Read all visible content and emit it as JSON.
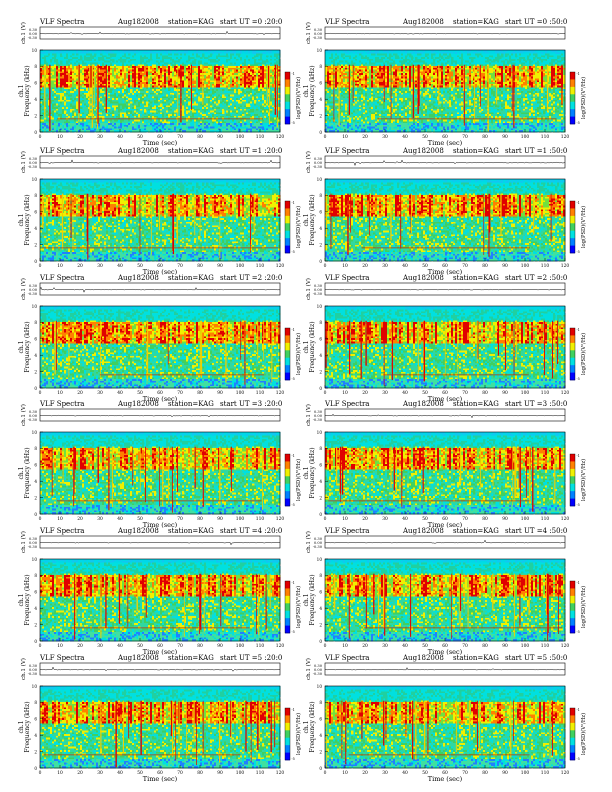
{
  "page": {
    "panels": [
      {
        "title": "VLF Spectra",
        "date": "Aug182008",
        "station": "station=KAG",
        "start": "start  UT  =0 :20:0"
      },
      {
        "title": "VLF Spectra",
        "date": "Aug182008",
        "station": "station=KAG",
        "start": "start  UT  =0 :50:0"
      },
      {
        "title": "VLF Spectra",
        "date": "Aug182008",
        "station": "station=KAG",
        "start": "start  UT  =1 :20:0"
      },
      {
        "title": "VLF Spectra",
        "date": "Aug182008",
        "station": "station=KAG",
        "start": "start  UT  =1 :50:0"
      },
      {
        "title": "VLF Spectra",
        "date": "Aug182008",
        "station": "station=KAG",
        "start": "start  UT  =2 :20:0"
      },
      {
        "title": "VLF Spectra",
        "date": "Aug182008",
        "station": "station=KAG",
        "start": "start  UT  =2 :50:0"
      },
      {
        "title": "VLF Spectra",
        "date": "Aug182008",
        "station": "station=KAG",
        "start": "start  UT  =3 :20:0"
      },
      {
        "title": "VLF Spectra",
        "date": "Aug182008",
        "station": "station=KAG",
        "start": "start  UT  =3 :50:0"
      },
      {
        "title": "VLF Spectra",
        "date": "Aug182008",
        "station": "station=KAG",
        "start": "start  UT  =4 :20:0"
      },
      {
        "title": "VLF Spectra",
        "date": "Aug182008",
        "station": "station=KAG",
        "start": "start  UT  =4 :50:0"
      },
      {
        "title": "VLF Spectra",
        "date": "Aug182008",
        "station": "station=KAG",
        "start": "start  UT  =5 :20:0"
      },
      {
        "title": "VLF Spectra",
        "date": "Aug182008",
        "station": "station=KAG",
        "start": "start  UT  =5 :50:0"
      }
    ],
    "colors": {
      "low": "#0000ff",
      "mid_low": "#00e0e0",
      "mid": "#40d060",
      "mid_high": "#f0f000",
      "high": "#e00000"
    }
  },
  "chart_data": {
    "type": "heatmap",
    "layout": "6 rows x 2 columns of spectrogram panels",
    "ch1_label": "ch.1 (V)",
    "ch1_ticks": [
      "0.30",
      "0.00",
      "-0.30"
    ],
    "ch1_ylim": [
      -0.3,
      0.3
    ],
    "ylabel_ch": "ch.1",
    "ylabel": "Frequency  (kHz)",
    "ylim": [
      0,
      10
    ],
    "yticks": [
      "0",
      "2",
      "4",
      "6",
      "8",
      "10"
    ],
    "xlabel": "Time  (sec)",
    "xlim": [
      0,
      120
    ],
    "xticks": [
      "0",
      "10",
      "20",
      "30",
      "40",
      "50",
      "60",
      "70",
      "80",
      "90",
      "100",
      "110",
      "120"
    ],
    "colorbar_label": "log(PSD)(V²/Hz)",
    "colorbar_ticks": [
      "-1",
      "-5"
    ],
    "bands": {
      "noise_band_khz": [
        0,
        8.2
      ],
      "intense_band_khz": [
        5.5,
        8.0
      ],
      "cutoff_khz": 9.5,
      "narrowband_line_khz": 1.6
    }
  }
}
